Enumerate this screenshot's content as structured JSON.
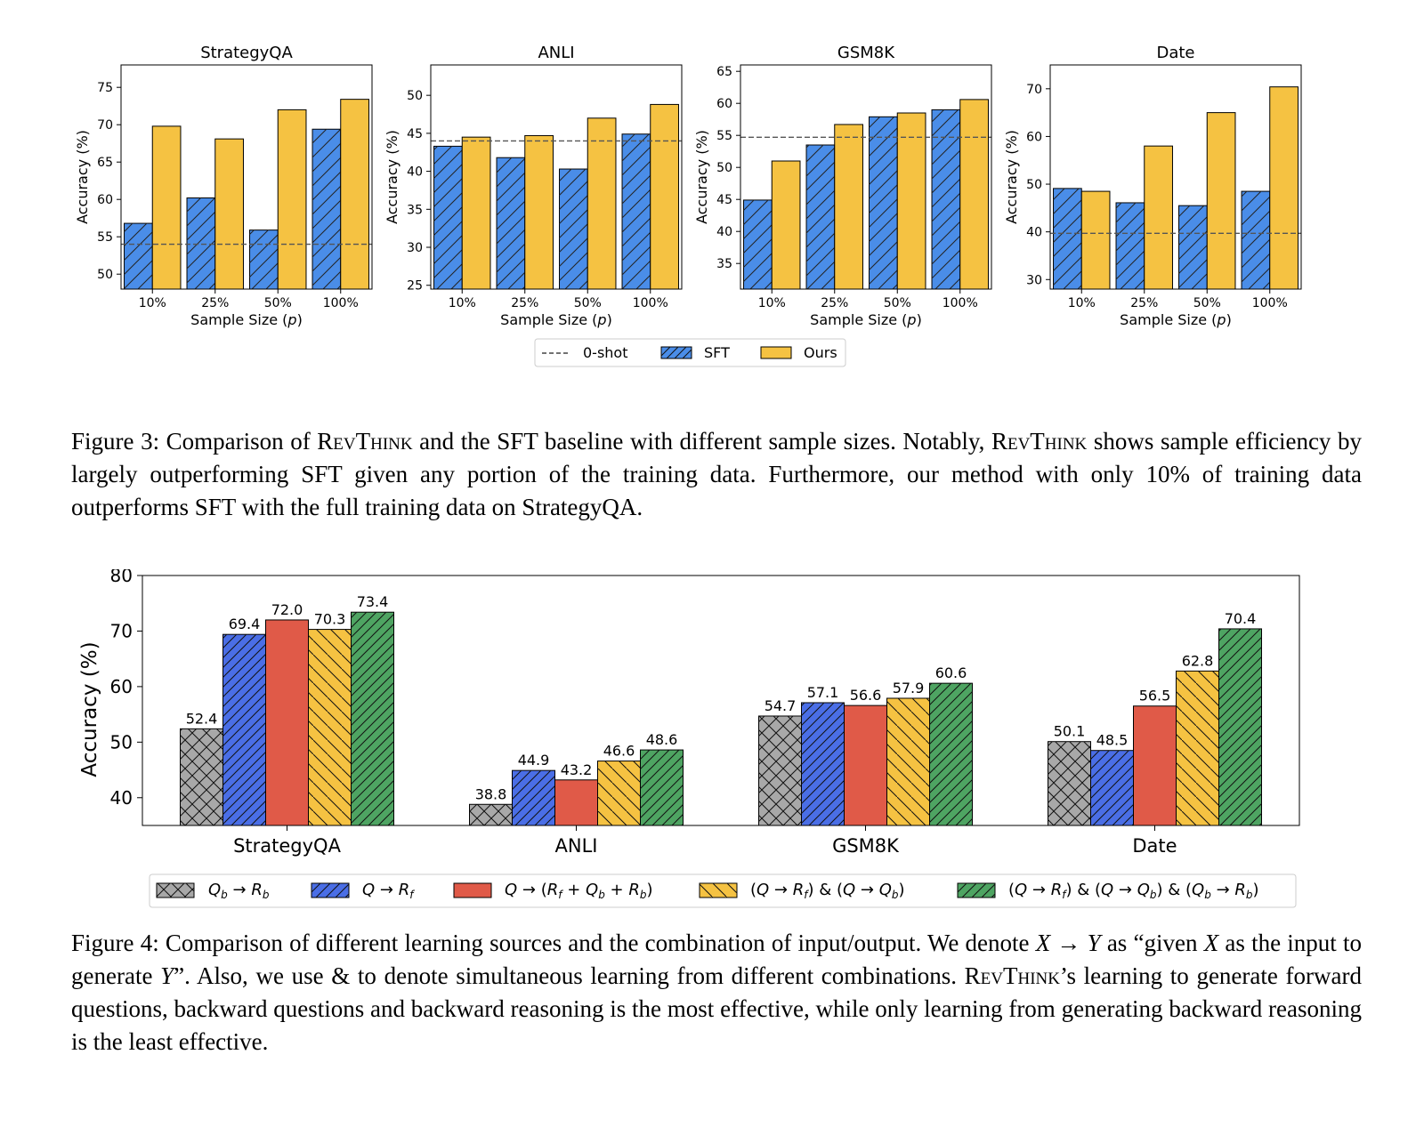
{
  "colors": {
    "sft": "#4a8de8",
    "ours": "#f5c242",
    "gray": "#a8a8a8",
    "blue": "#4a6ee6",
    "red": "#e05a48",
    "yellow": "#f5c242",
    "green": "#4ea462"
  },
  "figure3": {
    "legend": [
      "0-shot",
      "SFT",
      "Ours"
    ],
    "caption": {
      "prefix": "Figure 3: Comparison of ",
      "method": "RevThink",
      "part2": " and the SFT baseline with different sample sizes. Notably, ",
      "part3": " shows sample efficiency by largely outperforming SFT given any portion of the training data. Furthermore, our method with only 10% of training data outperforms SFT with the full training data on StrategyQA."
    },
    "chart_data": [
      {
        "type": "bar",
        "title": "StrategyQA",
        "xlabel": "Sample Size (p)",
        "ylabel": "Accuracy (%)",
        "categories": [
          "10%",
          "25%",
          "50%",
          "100%"
        ],
        "ylim": [
          48,
          78
        ],
        "yticks": [
          50,
          55,
          60,
          65,
          70,
          75
        ],
        "zero_shot": 54,
        "series": [
          {
            "name": "SFT",
            "values": [
              56.8,
              60.2,
              55.9,
              69.4
            ]
          },
          {
            "name": "Ours",
            "values": [
              69.8,
              68.1,
              72.0,
              73.4
            ]
          }
        ]
      },
      {
        "type": "bar",
        "title": "ANLI",
        "xlabel": "Sample Size (p)",
        "ylabel": "Accuracy (%)",
        "categories": [
          "10%",
          "25%",
          "50%",
          "100%"
        ],
        "ylim": [
          24.5,
          54
        ],
        "yticks": [
          25,
          30,
          35,
          40,
          45,
          50
        ],
        "zero_shot": 44,
        "series": [
          {
            "name": "SFT",
            "values": [
              43.3,
              41.8,
              40.3,
              44.9
            ]
          },
          {
            "name": "Ours",
            "values": [
              44.5,
              44.7,
              47.0,
              48.8
            ]
          }
        ]
      },
      {
        "type": "bar",
        "title": "GSM8K",
        "xlabel": "Sample Size (p)",
        "ylabel": "Accuracy (%)",
        "categories": [
          "10%",
          "25%",
          "50%",
          "100%"
        ],
        "ylim": [
          31,
          66
        ],
        "yticks": [
          35,
          40,
          45,
          50,
          55,
          60,
          65
        ],
        "zero_shot": 54.7,
        "series": [
          {
            "name": "SFT",
            "values": [
              44.9,
              53.5,
              57.9,
              59.0
            ]
          },
          {
            "name": "Ours",
            "values": [
              51.0,
              56.7,
              58.5,
              60.6
            ]
          }
        ]
      },
      {
        "type": "bar",
        "title": "Date",
        "xlabel": "Sample Size (p)",
        "ylabel": "Accuracy (%)",
        "categories": [
          "10%",
          "25%",
          "50%",
          "100%"
        ],
        "ylim": [
          28,
          75
        ],
        "yticks": [
          30,
          40,
          50,
          60,
          70
        ],
        "zero_shot": 39.7,
        "series": [
          {
            "name": "SFT",
            "values": [
              49.1,
              46.1,
              45.5,
              48.5
            ]
          },
          {
            "name": "Ours",
            "values": [
              48.5,
              58.0,
              65.0,
              70.4
            ]
          }
        ]
      }
    ]
  },
  "figure4": {
    "caption": {
      "prefix": "Figure 4: Comparison of different learning sources and the combination of input/output. We denote ",
      "x1": "X",
      "arrow": " → ",
      "y1": "Y",
      "part2": " as “given ",
      "x2": "X",
      "part3": " as the input to generate ",
      "y2": "Y",
      "part4": "”. Also, we use & to denote simultaneous learning from different combinations. ",
      "method": "RevThink",
      "part5": "’s learning to generate forward questions, backward questions and backward reasoning is the most effective, while only learning from generating backward reasoning is the least effective."
    },
    "chart_data": {
      "type": "bar",
      "ylabel": "Accuracy (%)",
      "categories": [
        "StrategyQA",
        "ANLI",
        "GSM8K",
        "Date"
      ],
      "ylim": [
        35,
        80
      ],
      "yticks": [
        40,
        50,
        60,
        70,
        80
      ],
      "series": [
        {
          "name": "Q_b → R_b",
          "values": [
            52.4,
            38.8,
            54.7,
            50.1
          ]
        },
        {
          "name": "Q → R_f",
          "values": [
            69.4,
            44.9,
            57.1,
            48.5
          ]
        },
        {
          "name": "Q → (R_f + Q_b + R_b)",
          "values": [
            72.0,
            43.2,
            56.6,
            56.5
          ]
        },
        {
          "name": "(Q → R_f) & (Q → Q_b)",
          "values": [
            70.3,
            46.6,
            57.9,
            62.8
          ]
        },
        {
          "name": "(Q → R_f) & (Q → Q_b) & (Q_b → R_b)",
          "values": [
            73.4,
            48.6,
            60.6,
            70.4
          ]
        }
      ],
      "data_labels": [
        [
          "52.4",
          "38.8",
          "54.7",
          "50.1"
        ],
        [
          "69.4",
          "44.9",
          "57.1",
          "48.5"
        ],
        [
          "72.0",
          "43.2",
          "56.6",
          "56.5"
        ],
        [
          "70.3",
          "46.6",
          "57.9",
          "62.8"
        ],
        [
          "73.4",
          "48.6",
          "60.6",
          "70.4"
        ]
      ]
    }
  }
}
